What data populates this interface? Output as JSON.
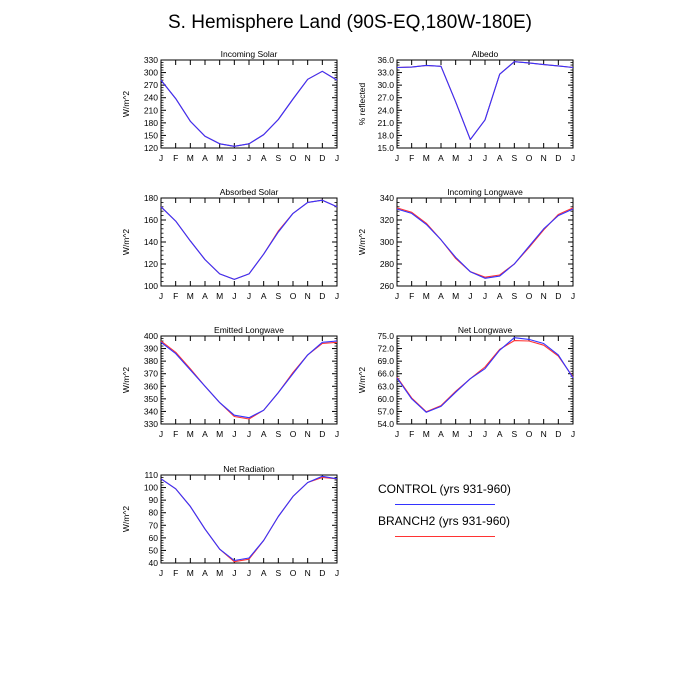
{
  "figure": {
    "title": "S. Hemisphere Land (90S-EQ,180W-180E)"
  },
  "colors": {
    "control": "#3333ff",
    "branch2": "#ff3333",
    "axis": "#000000"
  },
  "legend": {
    "control": "CONTROL (yrs 931-960)",
    "branch2": "BRANCH2 (yrs 931-960)"
  },
  "chart_data": [
    {
      "type": "line",
      "title": "Incoming Solar",
      "xlabel": "",
      "ylabel": "W/m^2",
      "categories": [
        "J",
        "F",
        "M",
        "A",
        "M",
        "J",
        "J",
        "A",
        "S",
        "O",
        "N",
        "D",
        "J"
      ],
      "ylim": [
        120,
        330
      ],
      "yticks": [
        "120",
        "150",
        "180",
        "210",
        "240",
        "270",
        "300",
        "330"
      ],
      "series": [
        {
          "name": "CONTROL (yrs 931-960)",
          "values": [
            282,
            238,
            184,
            148,
            130,
            124,
            130,
            152,
            188,
            237,
            284,
            303,
            282
          ]
        },
        {
          "name": "BRANCH2 (yrs 931-960)",
          "values": [
            282,
            238,
            184,
            148,
            130,
            124,
            130,
            152,
            188,
            237,
            284,
            303,
            282
          ]
        }
      ]
    },
    {
      "type": "line",
      "title": "Albedo",
      "xlabel": "",
      "ylabel": "% reflected",
      "categories": [
        "J",
        "F",
        "M",
        "A",
        "M",
        "J",
        "J",
        "A",
        "S",
        "O",
        "N",
        "D",
        "J"
      ],
      "ylim": [
        15.0,
        36.0
      ],
      "yticks": [
        "15.0",
        "18.0",
        "21.0",
        "24.0",
        "27.0",
        "30.0",
        "33.0",
        "36.0"
      ],
      "series": [
        {
          "name": "CONTROL (yrs 931-960)",
          "values": [
            34.2,
            34.3,
            34.7,
            34.5,
            26.0,
            17.0,
            21.7,
            32.6,
            35.6,
            35.3,
            34.9,
            34.6,
            34.2
          ]
        },
        {
          "name": "BRANCH2 (yrs 931-960)",
          "values": [
            34.2,
            34.3,
            34.7,
            34.5,
            26.0,
            17.0,
            21.7,
            32.6,
            35.6,
            35.3,
            34.9,
            34.6,
            34.2
          ]
        }
      ]
    },
    {
      "type": "line",
      "title": "Absorbed Solar",
      "xlabel": "",
      "ylabel": "W/m^2",
      "categories": [
        "J",
        "F",
        "M",
        "A",
        "M",
        "J",
        "J",
        "A",
        "S",
        "O",
        "N",
        "D",
        "J"
      ],
      "ylim": [
        100,
        180
      ],
      "yticks": [
        "100",
        "120",
        "140",
        "160",
        "180"
      ],
      "series": [
        {
          "name": "CONTROL (yrs 931-960)",
          "values": [
            172,
            159,
            141,
            124,
            111,
            106,
            111,
            129,
            149,
            166,
            176,
            178,
            172
          ]
        },
        {
          "name": "BRANCH2 (yrs 931-960)",
          "values": [
            172,
            159,
            141,
            124,
            111,
            106,
            111,
            129,
            150,
            166,
            176,
            178,
            172
          ]
        }
      ]
    },
    {
      "type": "line",
      "title": "Incoming Longwave",
      "xlabel": "",
      "ylabel": "W/m^2",
      "categories": [
        "J",
        "F",
        "M",
        "A",
        "M",
        "J",
        "J",
        "A",
        "S",
        "O",
        "N",
        "D",
        "J"
      ],
      "ylim": [
        260,
        340
      ],
      "yticks": [
        "260",
        "280",
        "300",
        "320",
        "340"
      ],
      "series": [
        {
          "name": "CONTROL (yrs 931-960)",
          "values": [
            330,
            326,
            316,
            302,
            286,
            273,
            267,
            269,
            280,
            296,
            312,
            324,
            330
          ]
        },
        {
          "name": "BRANCH2 (yrs 931-960)",
          "values": [
            331,
            327,
            317,
            302,
            285,
            273,
            268,
            270,
            280,
            295,
            311,
            325,
            331
          ]
        }
      ]
    },
    {
      "type": "line",
      "title": "Emitted Longwave",
      "xlabel": "",
      "ylabel": "W/m^2",
      "categories": [
        "J",
        "F",
        "M",
        "A",
        "M",
        "J",
        "J",
        "A",
        "S",
        "O",
        "N",
        "D",
        "J"
      ],
      "ylim": [
        330,
        400
      ],
      "yticks": [
        "330",
        "340",
        "350",
        "360",
        "370",
        "380",
        "390",
        "400"
      ],
      "series": [
        {
          "name": "CONTROL (yrs 931-960)",
          "values": [
            395,
            386,
            373,
            360,
            347,
            337,
            335,
            341,
            355,
            370,
            385,
            395,
            396
          ]
        },
        {
          "name": "BRANCH2 (yrs 931-960)",
          "values": [
            396,
            387,
            374,
            360,
            347,
            336,
            334,
            341,
            355,
            371,
            385,
            394,
            395
          ]
        }
      ]
    },
    {
      "type": "line",
      "title": "Net Longwave",
      "xlabel": "",
      "ylabel": "W/m^2",
      "categories": [
        "J",
        "F",
        "M",
        "A",
        "M",
        "J",
        "J",
        "A",
        "S",
        "O",
        "N",
        "D",
        "J"
      ],
      "ylim": [
        54.0,
        75.0
      ],
      "yticks": [
        "54.0",
        "57.0",
        "60.0",
        "63.0",
        "66.0",
        "69.0",
        "72.0",
        "75.0"
      ],
      "series": [
        {
          "name": "CONTROL (yrs 931-960)",
          "values": [
            65.0,
            60.0,
            56.8,
            58.2,
            61.6,
            64.8,
            67.2,
            71.6,
            74.6,
            74.2,
            73.2,
            70.5,
            65.0
          ]
        },
        {
          "name": "BRANCH2 (yrs 931-960)",
          "values": [
            65.2,
            60.2,
            56.9,
            58.4,
            61.8,
            64.8,
            67.6,
            71.8,
            73.9,
            73.8,
            72.8,
            70.2,
            65.2
          ]
        }
      ]
    },
    {
      "type": "line",
      "title": "Net Radiation",
      "xlabel": "",
      "ylabel": "W/m^2",
      "categories": [
        "J",
        "F",
        "M",
        "A",
        "M",
        "J",
        "J",
        "A",
        "S",
        "O",
        "N",
        "D",
        "J"
      ],
      "ylim": [
        40,
        110
      ],
      "yticks": [
        "40",
        "50",
        "60",
        "70",
        "80",
        "90",
        "100",
        "110"
      ],
      "series": [
        {
          "name": "CONTROL (yrs 931-960)",
          "values": [
            107,
            99,
            85,
            67,
            51,
            42,
            44,
            58,
            77,
            93,
            104,
            109,
            107
          ]
        },
        {
          "name": "BRANCH2 (yrs 931-960)",
          "values": [
            107,
            99,
            85,
            67,
            51,
            41,
            43,
            58,
            77,
            93,
            104,
            108,
            107
          ]
        }
      ]
    }
  ]
}
